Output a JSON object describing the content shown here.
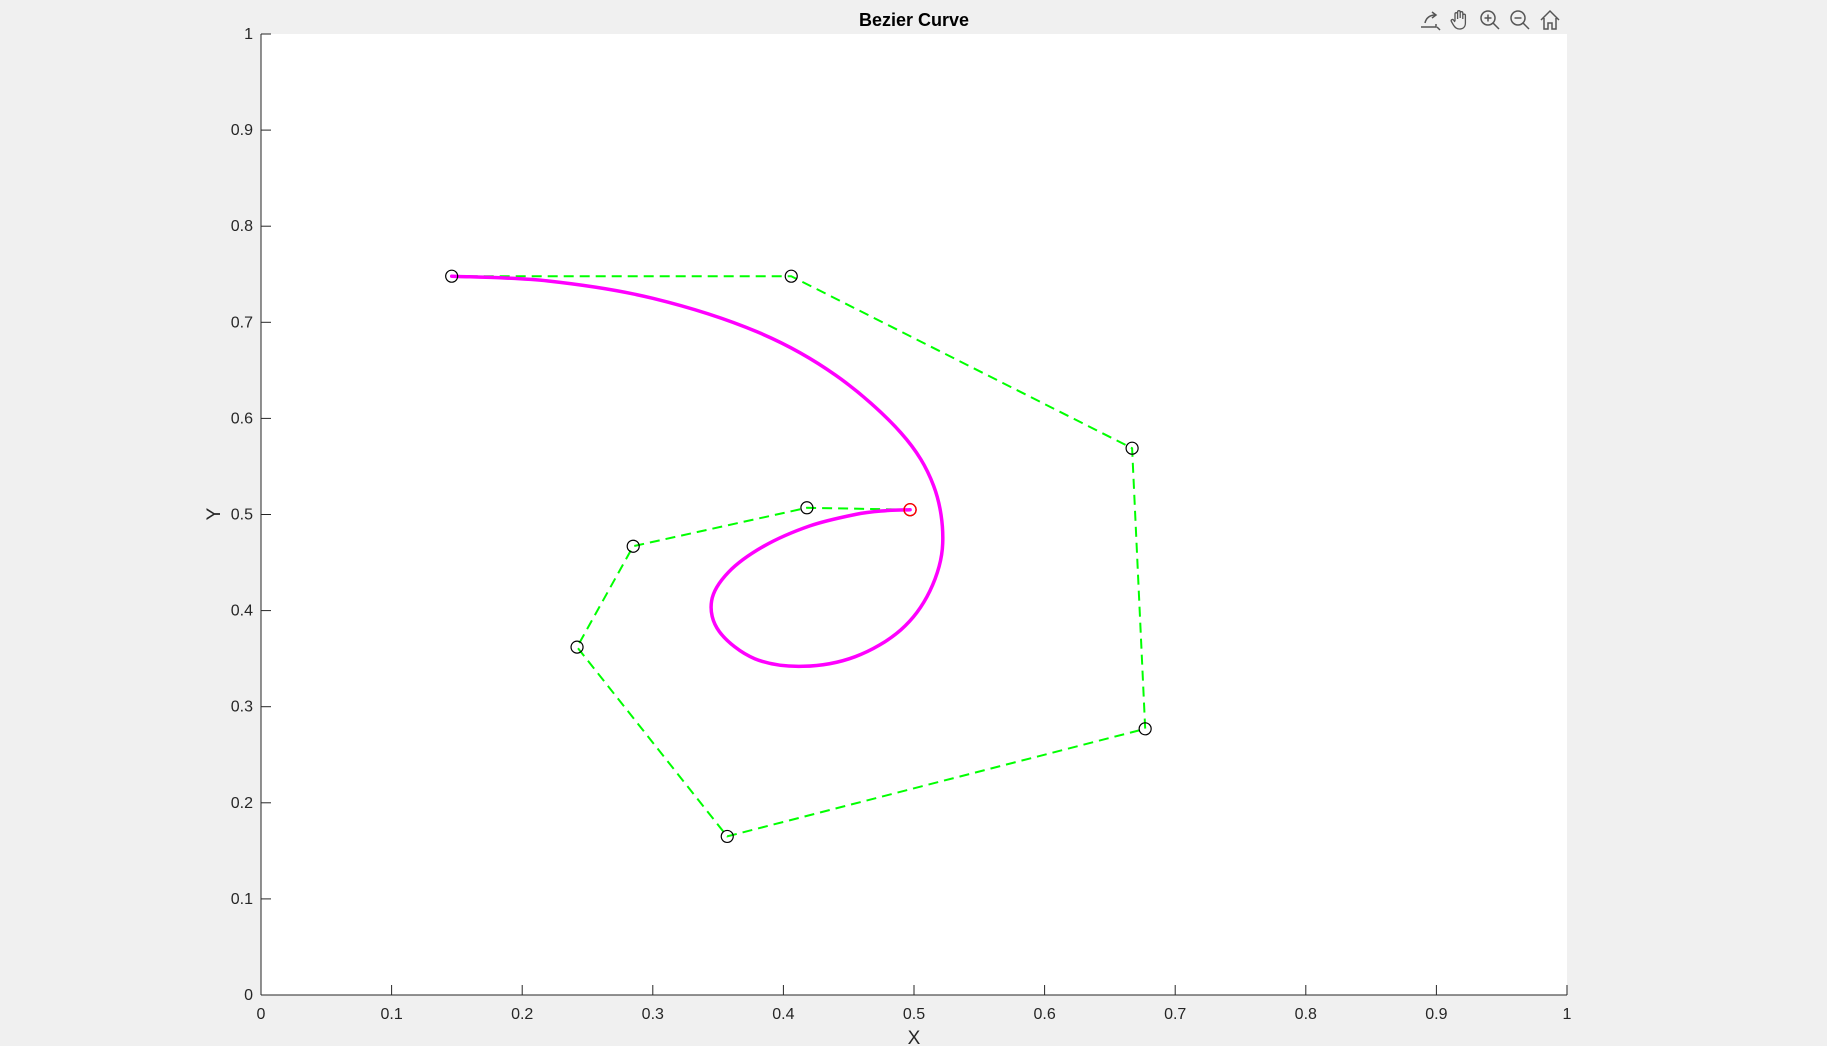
{
  "window": {
    "toolbar": [
      {
        "name": "export-icon",
        "tooltip": "Export"
      },
      {
        "name": "pan-hand-icon",
        "tooltip": "Pan"
      },
      {
        "name": "zoom-in-icon",
        "tooltip": "Zoom In"
      },
      {
        "name": "zoom-out-icon",
        "tooltip": "Zoom Out"
      },
      {
        "name": "home-icon",
        "tooltip": "Restore View"
      }
    ]
  },
  "colors": {
    "figure_bg": "#f0f0f0",
    "axes_bg": "#ffffff",
    "axis": "#262626",
    "curve": "#ff00ff",
    "polygon": "#00ff00",
    "marker": "#000000",
    "end_marker": "#ff0000"
  },
  "chart_data": {
    "type": "line",
    "title": "Bezier Curve",
    "xlabel": "X",
    "ylabel": "Y",
    "xlim": [
      0,
      1
    ],
    "ylim": [
      0,
      1
    ],
    "xticks": [
      "0",
      "0.1",
      "0.2",
      "0.3",
      "0.4",
      "0.5",
      "0.6",
      "0.7",
      "0.8",
      "0.9",
      "1"
    ],
    "yticks": [
      "0",
      "0.1",
      "0.2",
      "0.3",
      "0.4",
      "0.5",
      "0.6",
      "0.7",
      "0.8",
      "0.9",
      "1"
    ],
    "grid": false,
    "series": [
      {
        "style": "dashed",
        "color": "#00ff00",
        "marker": "circle",
        "x": [
          0.146,
          0.406,
          0.667,
          0.677,
          0.357,
          0.242,
          0.285,
          0.418,
          0.497
        ],
        "y": [
          0.748,
          0.748,
          0.569,
          0.277,
          0.165,
          0.362,
          0.467,
          0.507,
          0.505
        ]
      },
      {
        "style": "solid",
        "color": "#ff00ff",
        "x": [
          0.146,
          0.22,
          0.3,
          0.38,
          0.44,
          0.49,
          0.515,
          0.522,
          0.512,
          0.49,
          0.455,
          0.415,
          0.378,
          0.351,
          0.345,
          0.358,
          0.385,
          0.42,
          0.455,
          0.478,
          0.497
        ],
        "y": [
          0.748,
          0.743,
          0.725,
          0.69,
          0.645,
          0.585,
          0.53,
          0.47,
          0.42,
          0.38,
          0.352,
          0.342,
          0.35,
          0.378,
          0.41,
          0.44,
          0.467,
          0.488,
          0.5,
          0.504,
          0.505
        ]
      }
    ],
    "highlight_point": {
      "x": 0.497,
      "y": 0.505,
      "color": "#ff0000"
    }
  }
}
